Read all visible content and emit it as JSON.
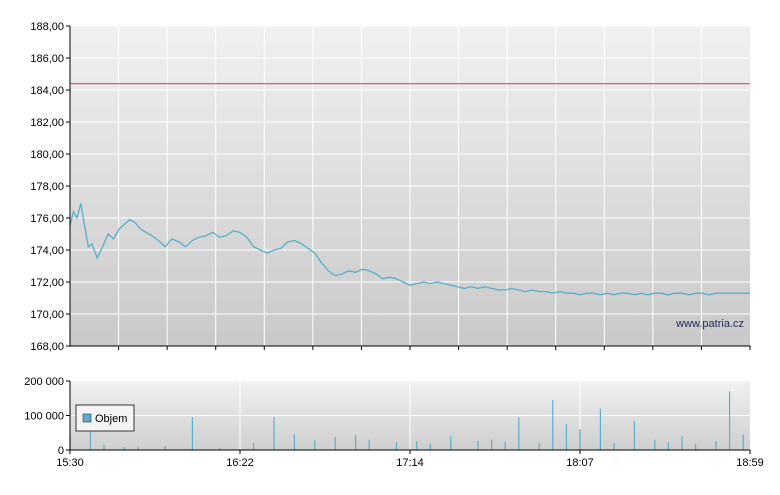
{
  "chart_data": [
    {
      "type": "line",
      "title": "",
      "xlabel": "",
      "ylabel": "",
      "ylim": [
        168,
        188
      ],
      "yticks": [
        "168,00",
        "170,00",
        "172,00",
        "174,00",
        "176,00",
        "178,00",
        "180,00",
        "182,00",
        "184,00",
        "186,00",
        "188,00"
      ],
      "reference_line": {
        "value": 184.4,
        "color": "#e06060"
      },
      "line_color": "#5aaecc",
      "grid": true,
      "watermark": "www.patria.cz",
      "series": [
        {
          "x": [
            0,
            0.005,
            0.01,
            0.016,
            0.021,
            0.027,
            0.032,
            0.04,
            0.048,
            0.056,
            0.064,
            0.072,
            0.08,
            0.088,
            0.096,
            0.104,
            0.112,
            0.12,
            0.13,
            0.14,
            0.15,
            0.16,
            0.17,
            0.18,
            0.19,
            0.2,
            0.21,
            0.22,
            0.23,
            0.24,
            0.25,
            0.26,
            0.27,
            0.28,
            0.29,
            0.3,
            0.31,
            0.32,
            0.33,
            0.34,
            0.35,
            0.36,
            0.37,
            0.38,
            0.39,
            0.4,
            0.41,
            0.42,
            0.43,
            0.44,
            0.45,
            0.46,
            0.47,
            0.48,
            0.49,
            0.5,
            0.51,
            0.52,
            0.53,
            0.54,
            0.55,
            0.56,
            0.57,
            0.58,
            0.59,
            0.6,
            0.61,
            0.62,
            0.63,
            0.64,
            0.65,
            0.66,
            0.67,
            0.68,
            0.69,
            0.7,
            0.71,
            0.72,
            0.73,
            0.74,
            0.75,
            0.76,
            0.77,
            0.78,
            0.79,
            0.8,
            0.81,
            0.82,
            0.83,
            0.84,
            0.85,
            0.86,
            0.87,
            0.88,
            0.89,
            0.9,
            0.91,
            0.92,
            0.93,
            0.94,
            0.95,
            0.96,
            0.97,
            0.98,
            0.99,
            1.0
          ],
          "values": [
            175.5,
            176.4,
            176.0,
            176.9,
            175.6,
            174.2,
            174.4,
            173.5,
            174.2,
            175.0,
            174.7,
            175.3,
            175.6,
            175.9,
            175.7,
            175.3,
            175.1,
            174.9,
            174.6,
            174.2,
            174.7,
            174.5,
            174.2,
            174.6,
            174.8,
            174.9,
            175.1,
            174.8,
            174.9,
            175.2,
            175.1,
            174.8,
            174.2,
            174.0,
            173.8,
            174.0,
            174.1,
            174.5,
            174.6,
            174.4,
            174.1,
            173.8,
            173.2,
            172.7,
            172.4,
            172.5,
            172.7,
            172.6,
            172.8,
            172.7,
            172.5,
            172.2,
            172.3,
            172.2,
            172.0,
            171.8,
            171.9,
            172.0,
            171.9,
            172.0,
            171.9,
            171.8,
            171.7,
            171.6,
            171.7,
            171.6,
            171.7,
            171.6,
            171.5,
            171.5,
            171.6,
            171.5,
            171.4,
            171.5,
            171.4,
            171.4,
            171.3,
            171.4,
            171.3,
            171.3,
            171.2,
            171.3,
            171.3,
            171.2,
            171.3,
            171.2,
            171.3,
            171.3,
            171.2,
            171.3,
            171.2,
            171.3,
            171.3,
            171.2,
            171.3,
            171.3,
            171.2,
            171.3,
            171.3,
            171.2,
            171.3,
            171.3,
            171.3,
            171.3,
            171.3,
            171.3
          ]
        }
      ]
    },
    {
      "type": "bar",
      "title": "",
      "ylim": [
        0,
        200000
      ],
      "yticks": [
        "0",
        "100 000",
        "200 000"
      ],
      "xticks": [
        "15:30",
        "16:22",
        "17:14",
        "18:07",
        "18:59"
      ],
      "bar_color": "#5aaecc",
      "legend": {
        "label": "Objem",
        "placement": "left"
      },
      "series": [
        {
          "name": "Objem",
          "x": [
            0.0,
            0.03,
            0.05,
            0.08,
            0.1,
            0.14,
            0.18,
            0.22,
            0.27,
            0.3,
            0.33,
            0.36,
            0.39,
            0.42,
            0.44,
            0.48,
            0.51,
            0.53,
            0.56,
            0.6,
            0.62,
            0.64,
            0.66,
            0.69,
            0.71,
            0.73,
            0.75,
            0.78,
            0.8,
            0.83,
            0.86,
            0.88,
            0.9,
            0.92,
            0.95,
            0.97,
            0.99
          ],
          "values": [
            40000,
            95000,
            15000,
            8000,
            10000,
            12000,
            95000,
            6000,
            20000,
            95000,
            45000,
            28000,
            38000,
            42000,
            30000,
            22000,
            25000,
            18000,
            40000,
            26000,
            30000,
            24000,
            95000,
            20000,
            145000,
            75000,
            60000,
            120000,
            20000,
            85000,
            30000,
            22000,
            40000,
            18000,
            25000,
            170000,
            45000
          ]
        }
      ]
    }
  ]
}
